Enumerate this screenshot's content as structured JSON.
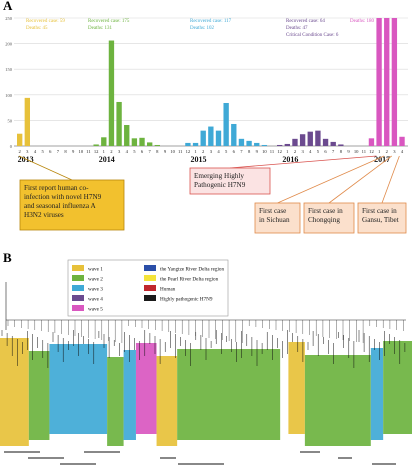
{
  "panel_a_label": "A",
  "panel_b_label": "B",
  "chart_data": [
    {
      "type": "bar",
      "panel": "A",
      "year_labels": [
        "2013",
        "2014",
        "2015",
        "2016",
        "2017"
      ],
      "month_tick_labels": [
        "2",
        "3",
        "4",
        "5",
        "6",
        "7",
        "8",
        "9",
        "10",
        "11",
        "12",
        "1",
        "2",
        "3",
        "4",
        "5",
        "6",
        "7",
        "8",
        "9",
        "10",
        "11",
        "12",
        "1",
        "2",
        "3",
        "4",
        "5",
        "6",
        "7",
        "8",
        "9",
        "10",
        "11",
        "12",
        "1",
        "2",
        "3",
        "4",
        "5",
        "6",
        "7",
        "8",
        "9",
        "10",
        "11",
        "12",
        "1",
        "2",
        "3",
        "4"
      ],
      "y_tick_labels": [
        "250",
        "200",
        "150",
        "100",
        "50",
        "0"
      ],
      "ylim": [
        0,
        250
      ],
      "grid": true,
      "series": [
        {
          "name": "wave 1",
          "color": "#e7c13a",
          "start_index": 0,
          "values": [
            24,
            94,
            0,
            0,
            0,
            0,
            0,
            0,
            0,
            0,
            0
          ]
        },
        {
          "name": "wave 2",
          "color": "#6db33f",
          "start_index": 10,
          "values": [
            3,
            17,
            206,
            86,
            41,
            15,
            16,
            7,
            2,
            0,
            0,
            0
          ]
        },
        {
          "name": "wave 3",
          "color": "#3fa9d6",
          "start_index": 22,
          "values": [
            6,
            6,
            30,
            38,
            30,
            84,
            43,
            14,
            10,
            6,
            2,
            0
          ]
        },
        {
          "name": "wave 4",
          "color": "#6b4a8f",
          "start_index": 34,
          "values": [
            2,
            4,
            14,
            23,
            28,
            30,
            14,
            8,
            3,
            0,
            0,
            0
          ]
        },
        {
          "name": "wave 5",
          "color": "#d957c0",
          "start_index": 45,
          "values": [
            0,
            15,
            250,
            250,
            250,
            18
          ]
        }
      ],
      "annotations": [
        {
          "lines": [
            "Recovered case: 59",
            "Deaths: 45"
          ],
          "color": "#e7c13a"
        },
        {
          "lines": [
            "Recovered case: 175",
            "Deaths: 131"
          ],
          "color": "#6db33f"
        },
        {
          "lines": [
            "Recovered case: 117",
            "Deaths: 102"
          ],
          "color": "#3fa9d6"
        },
        {
          "lines": [
            "Recovered case: 64",
            "Deaths: 47",
            "Critical Condition Case: 6"
          ],
          "color": "#6b4a8f"
        },
        {
          "lines": [
            "Deaths: 180"
          ],
          "color": "#d957c0"
        }
      ],
      "callouts": [
        {
          "text": [
            "First report human co-",
            "infection with novel H7N9",
            "and seasonal influenza A",
            "H3N2 viruses"
          ],
          "fill": "#f2c12e",
          "border": "#b8860b"
        },
        {
          "text": [
            "Emerging Highly",
            "Pathogenic H7N9"
          ],
          "fill": "#fbe3e3",
          "border": "#d9534f"
        },
        {
          "text": [
            "First case",
            "in Sichuan"
          ],
          "fill": "#fbe0cc",
          "border": "#e08a4a"
        },
        {
          "text": [
            "First case in",
            "Chongqing"
          ],
          "fill": "#fbe0cc",
          "border": "#e08a4a"
        },
        {
          "text": [
            "First case in",
            "Gansu, Tibet"
          ],
          "fill": "#fbe0cc",
          "border": "#e08a4a"
        }
      ]
    },
    {
      "type": "tree",
      "panel": "B",
      "legend": [
        {
          "label": "wave 1",
          "color": "#e7c13a"
        },
        {
          "label": "wave 2",
          "color": "#6db33f"
        },
        {
          "label": "wave 3",
          "color": "#3fa9d6"
        },
        {
          "label": "wave 4",
          "color": "#6b4a8f"
        },
        {
          "label": "wave 5",
          "color": "#d957c0"
        },
        {
          "label": "the Yangtze River Delta region",
          "color": "#2a4ea8"
        },
        {
          "label": "the Pearl River Delta region",
          "color": "#f4e33a"
        },
        {
          "label": "Human",
          "color": "#c0262d"
        },
        {
          "label": "Highly pathogenic H7N9",
          "color": "#1a1a1a"
        }
      ],
      "tip_blocks": [
        {
          "color": "#e7c13a",
          "span": [
            0.0,
            0.07
          ]
        },
        {
          "color": "#6db33f",
          "span": [
            0.07,
            0.12
          ]
        },
        {
          "color": "#3fa9d6",
          "span": [
            0.12,
            0.26
          ]
        },
        {
          "color": "#6db33f",
          "span": [
            0.26,
            0.3
          ]
        },
        {
          "color": "#3fa9d6",
          "span": [
            0.3,
            0.33
          ]
        },
        {
          "color": "#d957c0",
          "span": [
            0.33,
            0.38
          ]
        },
        {
          "color": "#e7c13a",
          "span": [
            0.38,
            0.43
          ]
        },
        {
          "color": "#6db33f",
          "span": [
            0.43,
            0.68
          ]
        },
        {
          "color": "#e7c13a",
          "span": [
            0.7,
            0.74
          ]
        },
        {
          "color": "#6db33f",
          "span": [
            0.74,
            0.9
          ]
        },
        {
          "color": "#3fa9d6",
          "span": [
            0.9,
            0.93
          ]
        },
        {
          "color": "#6db33f",
          "span": [
            0.93,
            1.0
          ]
        }
      ]
    }
  ]
}
